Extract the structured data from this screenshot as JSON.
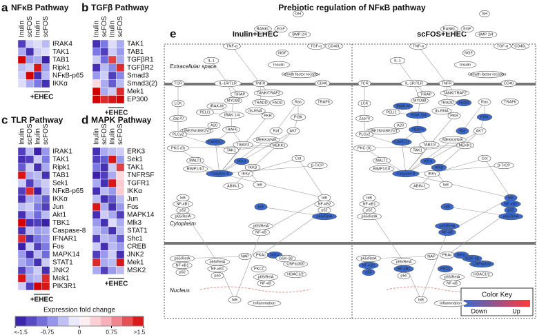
{
  "figure_title": "Prebiotic regulation of NFκB pathway",
  "heatmaps": [
    {
      "letter": "a",
      "title": "NFκB Pathway",
      "columns": [
        "Inulin",
        "scFOS",
        "Inulin",
        "scFOS"
      ],
      "group_label": "+EHEC",
      "rows": [
        "IRAK4",
        "TAK1",
        "TAB1",
        "Ripk1",
        "NFκB-p65",
        "IKKα"
      ],
      "values": [
        [
          -1.2,
          -0.3,
          -0.2,
          -0.4
        ],
        [
          -0.5,
          -1.3,
          -0.3,
          -0.2
        ],
        [
          1.5,
          -0.6,
          -0.5,
          -1.4
        ],
        [
          -0.4,
          -0.3,
          1.4,
          -0.6
        ],
        [
          -0.3,
          1.5,
          -1.3,
          -0.4
        ],
        [
          -0.2,
          -0.5,
          -0.8,
          -1.3
        ]
      ]
    },
    {
      "letter": "b",
      "title": "TGFβ Pathway",
      "columns": [
        "Inulin",
        "scFOS",
        "Inulin",
        "scFOS"
      ],
      "group_label": "+EHEC",
      "rows": [
        "TAK1",
        "TAB1",
        "TGFβR1",
        "TGFβR2",
        "Smad3",
        "Smad3(2)",
        "Mek1",
        "EP300"
      ],
      "values": [
        [
          -1.3,
          -0.8,
          -0.2,
          -0.5
        ],
        [
          -0.8,
          -1.2,
          -0.3,
          -0.6
        ],
        [
          -0.3,
          -0.9,
          1.2,
          -0.5
        ],
        [
          -1.3,
          -0.4,
          -0.7,
          1.3
        ],
        [
          -0.6,
          -0.3,
          -1.2,
          -0.7
        ],
        [
          0.3,
          -0.5,
          -1.0,
          -0.4
        ],
        [
          1.5,
          -0.5,
          -0.3,
          1.3
        ],
        [
          1.5,
          1.3,
          1.4,
          1.5
        ]
      ]
    },
    {
      "letter": "c",
      "title": "TLR Pathway",
      "columns": [
        "Inulin",
        "scFOS",
        "Inulin",
        "scFOS"
      ],
      "group_label": "+EHEC",
      "rows": [
        "IRAK1",
        "TAK1",
        "Ripk1",
        "TAB1",
        "Sek1",
        "NFκB-p65",
        "IKKα",
        "Jun",
        "Akt1",
        "TBK1",
        "Caspase-8",
        "IFNAR1",
        "Fos",
        "MAPK14",
        "STAT1",
        "JNK2",
        "Mek1",
        "PIK3R1"
      ],
      "values": [
        [
          -1.2,
          -0.4,
          -1.4,
          -0.6
        ],
        [
          -1.3,
          -1.2,
          -0.3,
          -0.8
        ],
        [
          -1.0,
          -0.3,
          -1.3,
          -0.5
        ],
        [
          1.4,
          -0.5,
          -0.4,
          -1.3
        ],
        [
          -0.3,
          -1.2,
          -0.5,
          -0.3
        ],
        [
          -1.2,
          1.3,
          -1.4,
          -0.4
        ],
        [
          -1.3,
          -0.5,
          -0.6,
          -1.0
        ],
        [
          -0.4,
          -0.3,
          -0.8,
          -1.2
        ],
        [
          -1.3,
          -0.5,
          -0.9,
          -0.4
        ],
        [
          1.5,
          -1.3,
          -1.2,
          -1.4
        ],
        [
          -1.3,
          -0.4,
          -0.6,
          -0.5
        ],
        [
          1.3,
          -1.3,
          -0.8,
          -0.6
        ],
        [
          -1.4,
          -0.3,
          -1.2,
          -0.8
        ],
        [
          -0.6,
          -1.3,
          -0.4,
          -0.9
        ],
        [
          -0.5,
          -0.7,
          -1.3,
          -0.3
        ],
        [
          -1.2,
          -0.6,
          -0.3,
          -1.3
        ],
        [
          1.4,
          -0.5,
          -0.4,
          1.3
        ],
        [
          -0.3,
          -1.2,
          1.5,
          1.4
        ]
      ]
    },
    {
      "letter": "d",
      "title": "MAPK Pathway",
      "columns": [
        "Inulin",
        "scFOS",
        "Inulin",
        "scFOS"
      ],
      "group_label": "+EHEC",
      "rows": [
        "ERK3",
        "Sek1",
        "TAK1",
        "TNFRSF",
        "TGFR1",
        "IKKα",
        "Jun",
        "Fos",
        "MAPK14",
        "Mlk3",
        "STAT1",
        "Shc1",
        "CREB",
        "JNK2",
        "Mek1",
        "MSK2"
      ],
      "values": [
        [
          -1.3,
          -0.5,
          -0.4,
          -0.3
        ],
        [
          -1.2,
          -1.0,
          1.4,
          -0.6
        ],
        [
          -0.8,
          -1.3,
          -0.3,
          1.2
        ],
        [
          -1.4,
          -1.2,
          -0.5,
          0.3
        ],
        [
          -0.5,
          -1.3,
          1.4,
          0.4
        ],
        [
          -1.3,
          -0.4,
          -0.6,
          0.4
        ],
        [
          -0.4,
          -1.3,
          -1.0,
          -0.4
        ],
        [
          1.4,
          -0.5,
          -1.3,
          -0.6
        ],
        [
          -1.3,
          -0.3,
          -0.5,
          -1.2
        ],
        [
          -0.6,
          -1.3,
          -0.2,
          -0.5
        ],
        [
          -0.4,
          -0.6,
          -1.3,
          -0.4
        ],
        [
          -1.2,
          -0.4,
          -0.5,
          -1.0
        ],
        [
          -0.3,
          -1.3,
          -0.4,
          -0.6
        ],
        [
          -1.2,
          -0.6,
          -0.3,
          -1.3
        ],
        [
          1.3,
          -0.5,
          -0.4,
          1.4
        ],
        [
          -0.5,
          -1.2,
          -0.6,
          -0.4
        ]
      ]
    }
  ],
  "color_scale": {
    "title": "Expression fold change",
    "lim": [
      -1.5,
      1.5
    ],
    "ticks": [
      {
        "value": -1.5,
        "label": "<-1.5"
      },
      -0.75,
      0,
      0.75,
      {
        "value": 1.5,
        "label": ">1.5"
      }
    ],
    "colors": [
      "#3012a0",
      "#8080e8",
      "#ffffff",
      "#f5a0aa",
      "#d40000"
    ]
  },
  "pathway": {
    "letter": "e",
    "panels": [
      "Inulin+EHEC",
      "scFOS+EHEC"
    ],
    "compartments": [
      "Extracellular space",
      "Cytoplasm",
      "Nucleus"
    ],
    "nodes": [
      "GH",
      "RANKL",
      "EGF",
      "BMP 2/4",
      "TNF-α",
      "IL-1",
      "NGF",
      "Insulin",
      "TGF-α",
      "CD40L",
      "Growth factor receptor",
      "TCR",
      "IL-1R/TLR",
      "TNFR",
      "CD40",
      "TIRAP",
      "MYD88",
      "TANK/TRAF2",
      "TRADD",
      "FADD",
      "IRAK-M",
      "PELI1",
      "IRAK 1/4",
      "ds-RNA",
      "PKR",
      "Ras",
      "TRAF6",
      "LCK",
      "Zap70",
      "PI3K",
      "UBE2N/UBE2V1",
      "A20",
      "PLCγ2",
      "Raf",
      "AKT",
      "MEKK3/NIK",
      "MEKK1",
      "CARD11",
      "TAB2/3",
      "TAK1",
      "PKC (θ)",
      "MALT1",
      "BIMP1/10",
      "Caspase-8",
      "IKKα",
      "IKKβ",
      "IKKγ",
      "Cot",
      "β-TrCP",
      "ABIN-1",
      "IκB",
      "NF-κB1",
      "p52",
      "p65/RelA",
      "NF-κB",
      "NF-κB2",
      "NAP",
      "PKAc",
      "GSK-3β",
      "CBP/p300",
      "PKCζ",
      "HDAC1/2",
      "Inflammation",
      "p50"
    ],
    "color_key": {
      "title": "Color Key",
      "labels": [
        "Down",
        "Up"
      ],
      "colors": [
        "#3a6ad0",
        "#ff3a3a"
      ]
    }
  }
}
